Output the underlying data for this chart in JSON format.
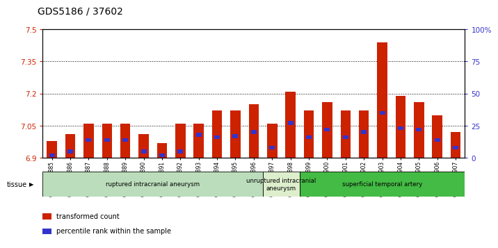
{
  "title": "GDS5186 / 37602",
  "samples": [
    "GSM1306885",
    "GSM1306886",
    "GSM1306887",
    "GSM1306888",
    "GSM1306889",
    "GSM1306890",
    "GSM1306891",
    "GSM1306892",
    "GSM1306893",
    "GSM1306894",
    "GSM1306895",
    "GSM1306896",
    "GSM1306897",
    "GSM1306898",
    "GSM1306899",
    "GSM1306900",
    "GSM1306901",
    "GSM1306902",
    "GSM1306903",
    "GSM1306904",
    "GSM1306905",
    "GSM1306906",
    "GSM1306907"
  ],
  "transformed_count": [
    6.98,
    7.01,
    7.06,
    7.06,
    7.06,
    7.01,
    6.97,
    7.06,
    7.06,
    7.12,
    7.12,
    7.15,
    7.06,
    7.21,
    7.12,
    7.16,
    7.12,
    7.12,
    7.44,
    7.19,
    7.16,
    7.1,
    7.02
  ],
  "percentile_rank": [
    2,
    5,
    14,
    14,
    14,
    5,
    2,
    5,
    18,
    16,
    17,
    20,
    8,
    27,
    16,
    22,
    16,
    20,
    35,
    23,
    22,
    14,
    8
  ],
  "ylim_left": [
    6.9,
    7.5
  ],
  "ylim_right": [
    0,
    100
  ],
  "yticks_left": [
    6.9,
    7.05,
    7.2,
    7.35,
    7.5
  ],
  "yticks_right": [
    0,
    25,
    50,
    75,
    100
  ],
  "ytick_labels_left": [
    "6.9",
    "7.05",
    "7.2",
    "7.35",
    "7.5"
  ],
  "ytick_labels_right": [
    "0",
    "25",
    "50",
    "75",
    "100%"
  ],
  "grid_lines": [
    7.05,
    7.2,
    7.35
  ],
  "bar_color": "#cc2200",
  "percentile_color": "#3333cc",
  "tissue_groups": [
    {
      "label": "ruptured intracranial aneurysm",
      "start": 0,
      "end": 12,
      "color": "#bbddbb"
    },
    {
      "label": "unruptured intracranial\naneurysm",
      "start": 12,
      "end": 14,
      "color": "#ddeecc"
    },
    {
      "label": "superficial temporal artery",
      "start": 14,
      "end": 23,
      "color": "#44bb44"
    }
  ],
  "tissue_label": "tissue",
  "legend_items": [
    {
      "label": "transformed count",
      "color": "#cc2200"
    },
    {
      "label": "percentile rank within the sample",
      "color": "#3333cc"
    }
  ],
  "plot_bg": "#ffffff",
  "fig_bg": "#ffffff",
  "title_fontsize": 10,
  "axis_color_left": "#cc2200",
  "axis_color_right": "#3333cc"
}
